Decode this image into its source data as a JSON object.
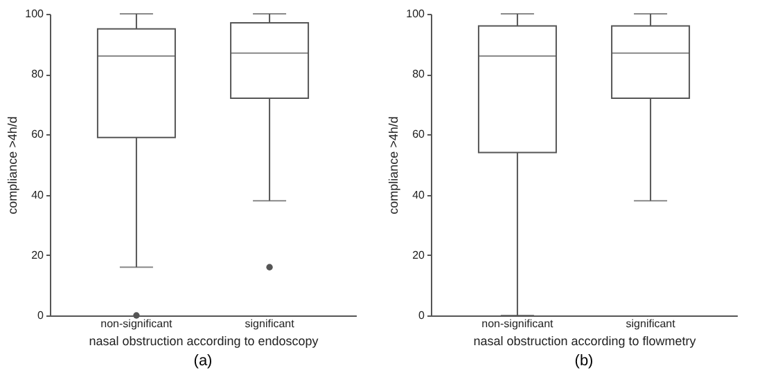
{
  "chart_data": [
    {
      "type": "box",
      "title": "(a)",
      "xlabel": "nasal obstruction according to endoscopy",
      "ylabel": "compliance >4h/d",
      "categories": [
        "non-significant",
        "significant"
      ],
      "ylim": [
        0,
        100
      ],
      "yticks": [
        0,
        20,
        40,
        60,
        80,
        100
      ],
      "grid": false,
      "boxes": [
        {
          "low": 16,
          "q1": 59,
          "median": 86,
          "q3": 95,
          "high": 100,
          "outliers": [
            0
          ]
        },
        {
          "low": 38,
          "q1": 72,
          "median": 87,
          "q3": 97,
          "high": 100,
          "outliers": [
            16
          ]
        }
      ]
    },
    {
      "type": "box",
      "title": "(b)",
      "xlabel": "nasal obstruction according to flowmetry",
      "ylabel": "compliance >4h/d",
      "categories": [
        "non-significant",
        "significant"
      ],
      "ylim": [
        0,
        100
      ],
      "yticks": [
        0,
        20,
        40,
        60,
        80,
        100
      ],
      "grid": false,
      "boxes": [
        {
          "low": 0,
          "q1": 54,
          "median": 86,
          "q3": 96,
          "high": 100
        },
        {
          "low": 38,
          "q1": 72,
          "median": 87,
          "q3": 96,
          "high": 100
        }
      ]
    }
  ]
}
